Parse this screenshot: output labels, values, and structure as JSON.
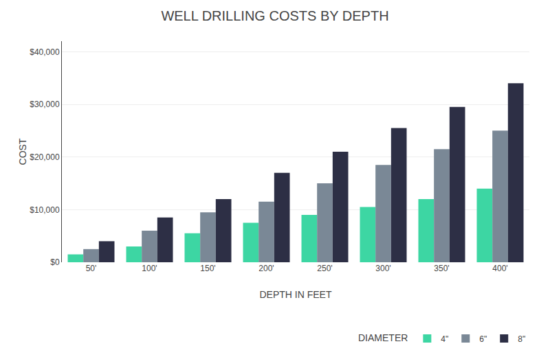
{
  "chart_data": {
    "type": "bar",
    "title": "WELL DRILLING COSTS BY DEPTH",
    "xlabel": "DEPTH IN FEET",
    "ylabel": "COST",
    "categories": [
      "50'",
      "100'",
      "150'",
      "200'",
      "250'",
      "300'",
      "350'",
      "400'"
    ],
    "series": [
      {
        "name": "4\"",
        "color": "#3dd6a3",
        "values": [
          1500,
          3000,
          5500,
          7500,
          9000,
          10500,
          12000,
          14000
        ]
      },
      {
        "name": "6\"",
        "color": "#7a8896",
        "values": [
          2500,
          6000,
          9500,
          11500,
          15000,
          18500,
          21500,
          25000
        ]
      },
      {
        "name": "8\"",
        "color": "#2d2f45",
        "values": [
          4000,
          8500,
          12000,
          17000,
          21000,
          25500,
          29500,
          34000
        ]
      }
    ],
    "legend_title": "DIAMETER",
    "legend": "bottom right",
    "ylim": [
      0,
      42000
    ],
    "yticks": [
      {
        "value": 0,
        "label": "$0"
      },
      {
        "value": 10000,
        "label": "$10,000"
      },
      {
        "value": 20000,
        "label": "$20,000"
      },
      {
        "value": 30000,
        "label": "$30,000"
      },
      {
        "value": 40000,
        "label": "$40,000"
      }
    ],
    "grid": true
  }
}
